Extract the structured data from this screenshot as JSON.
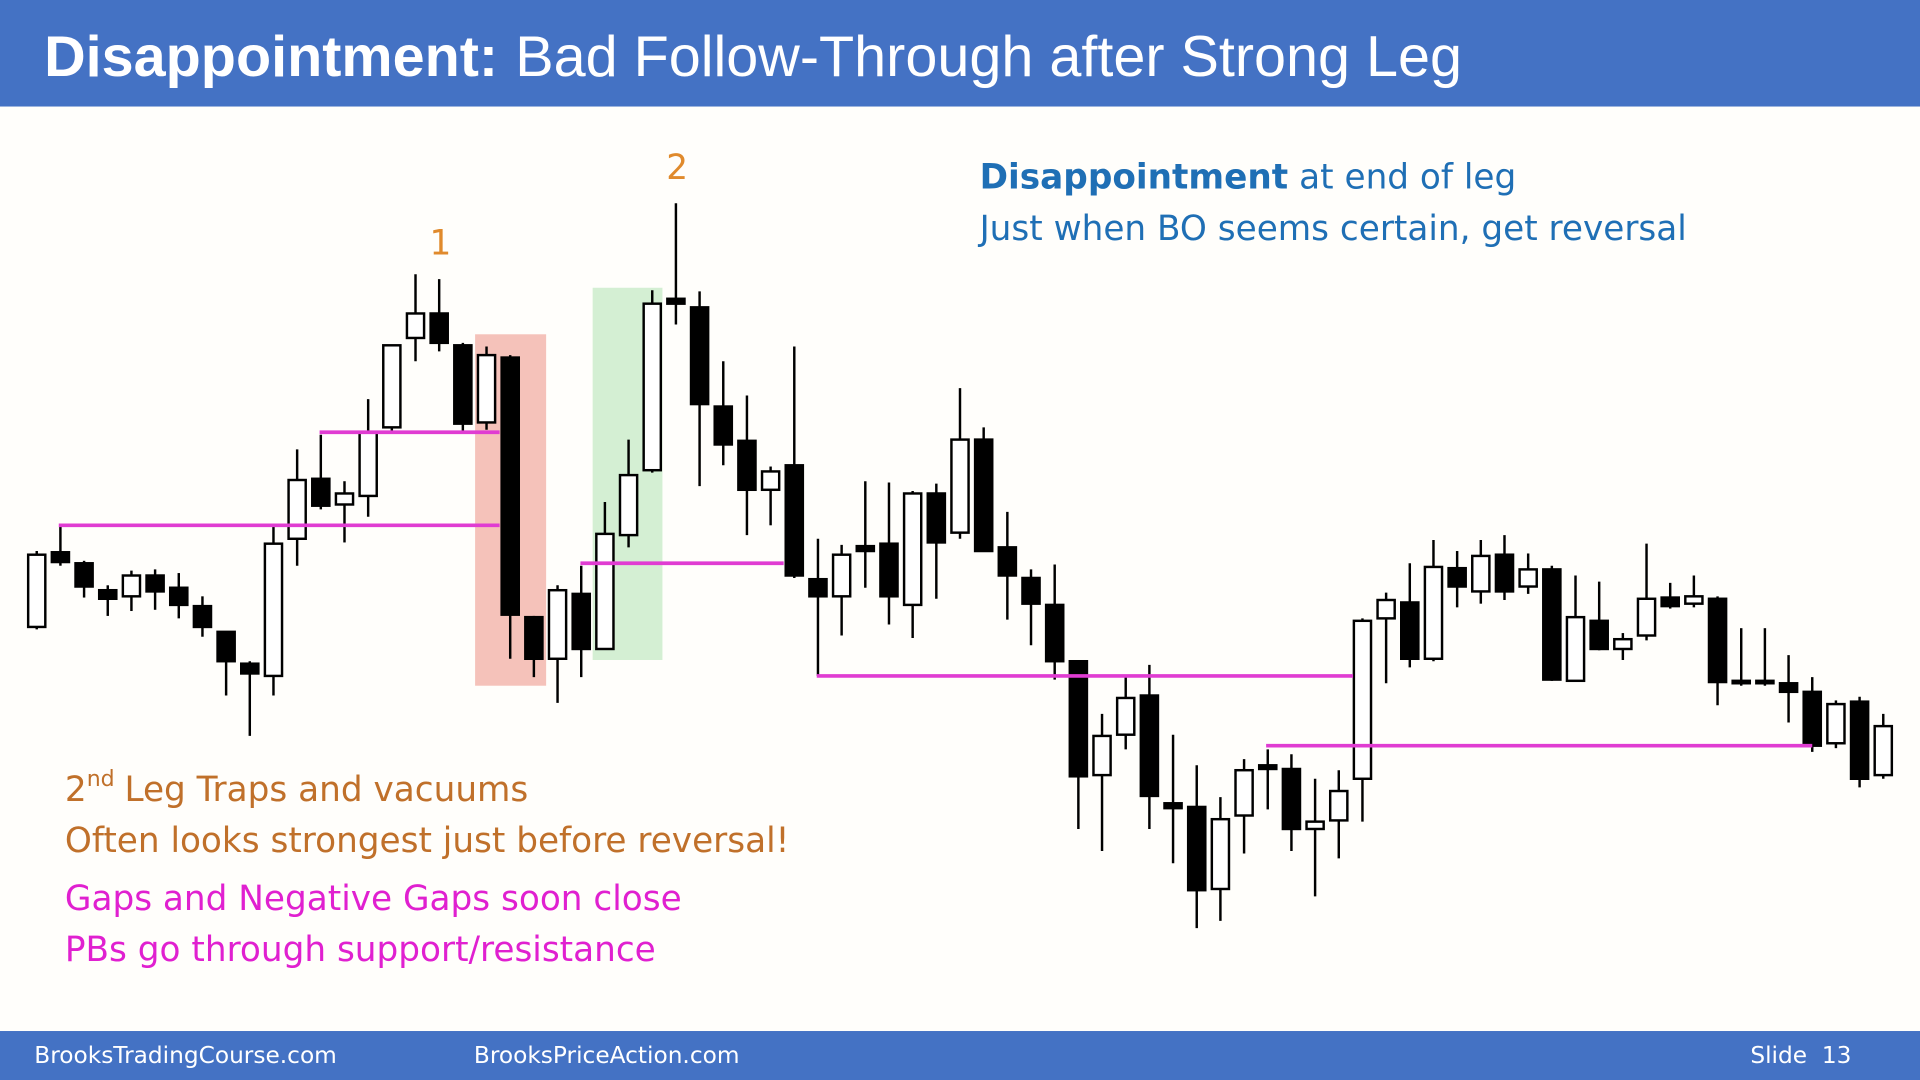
{
  "header": {
    "title_bold": "Disappointment:",
    "title_rest": "Bad Follow-Through after Strong Leg"
  },
  "chart_data": {
    "type": "candlestick",
    "open": [
      388,
      449,
      440,
      418,
      413,
      430,
      420,
      405,
      384,
      358,
      348,
      460,
      509,
      488,
      495,
      551,
      624,
      644,
      618,
      555,
      608,
      396,
      362,
      415,
      370,
      463,
      516,
      656,
      649,
      568,
      540,
      500,
      520,
      427,
      413,
      454,
      456,
      406,
      497,
      465,
      541,
      453,
      428,
      406,
      360,
      267,
      300,
      332,
      244,
      241,
      174,
      234,
      275,
      272,
      223,
      230,
      264,
      395,
      408,
      362,
      436,
      417,
      447,
      421,
      435,
      344,
      393,
      370,
      381,
      412,
      407,
      411,
      344,
      344,
      342,
      335,
      293,
      327,
      267
    ],
    "high": [
      450,
      472,
      442,
      422,
      434,
      435,
      432,
      413,
      384,
      360,
      472,
      533,
      545,
      507,
      574,
      618,
      676,
      672,
      620,
      617,
      610,
      397,
      422,
      438,
      490,
      541,
      663,
      734,
      662,
      605,
      577,
      519,
      617,
      460,
      455,
      507,
      506,
      499,
      505,
      583,
      551,
      482,
      435,
      439,
      360,
      317,
      348,
      357,
      300,
      275,
      249,
      280,
      288,
      284,
      264,
      271,
      395,
      416,
      440,
      459,
      450,
      459,
      463,
      448,
      438,
      430,
      425,
      383,
      456,
      424,
      430,
      413,
      387,
      387,
      365,
      347,
      328,
      331,
      317
    ],
    "low": [
      386,
      438,
      412,
      397,
      401,
      402,
      395,
      380,
      332,
      299,
      332,
      438,
      484,
      457,
      478,
      548,
      605,
      613,
      547,
      549,
      362,
      347,
      326,
      347,
      370,
      453,
      514,
      635,
      503,
      520,
      463,
      471,
      428,
      348,
      381,
      420,
      390,
      379,
      411,
      460,
      450,
      394,
      373,
      345,
      223,
      205,
      288,
      223,
      195,
      142,
      148,
      203,
      239,
      205,
      168,
      199,
      229,
      342,
      355,
      360,
      404,
      407,
      410,
      415,
      344,
      343,
      369,
      361,
      377,
      403,
      404,
      324,
      340,
      340,
      310,
      286,
      289,
      257,
      264
    ],
    "close": [
      447,
      441,
      421,
      411,
      430,
      417,
      406,
      388,
      360,
      350,
      456,
      508,
      487,
      497,
      547,
      618,
      644,
      620,
      554,
      610,
      398,
      362,
      418,
      370,
      464,
      512,
      652,
      652,
      570,
      537,
      500,
      515,
      430,
      413,
      447,
      450,
      413,
      497,
      457,
      541,
      450,
      430,
      407,
      360,
      266,
      299,
      330,
      250,
      240,
      173,
      231,
      271,
      272,
      223,
      229,
      254,
      393,
      410,
      362,
      437,
      421,
      446,
      417,
      435,
      345,
      396,
      370,
      378,
      411,
      405,
      413,
      343,
      342,
      342,
      335,
      291,
      325,
      264,
      307
    ],
    "ylim": [
      18,
      900
    ],
    "up_color": "#ffffff",
    "down_color": "#000000",
    "annotations": [
      {
        "text": "1",
        "index": 17
      },
      {
        "text": "2",
        "index": 27
      }
    ]
  },
  "notes": {
    "blue_bold": "Disappointment",
    "blue_rest": "at end of leg",
    "blue_2": "Just when BO seems certain, get reversal",
    "orange_num": "2",
    "orange_sup": "nd",
    "orange_rest": "Leg Traps and vacuums",
    "orange_2": "Often looks strongest just before reversal!",
    "magenta_1": "Gaps and Negative Gaps soon close",
    "magenta_2": "PBs go through support/resistance"
  },
  "footer": {
    "left": "BrooksTradingCourse.com",
    "center": "BrooksPriceAction.com",
    "slide": "Slide  13"
  }
}
